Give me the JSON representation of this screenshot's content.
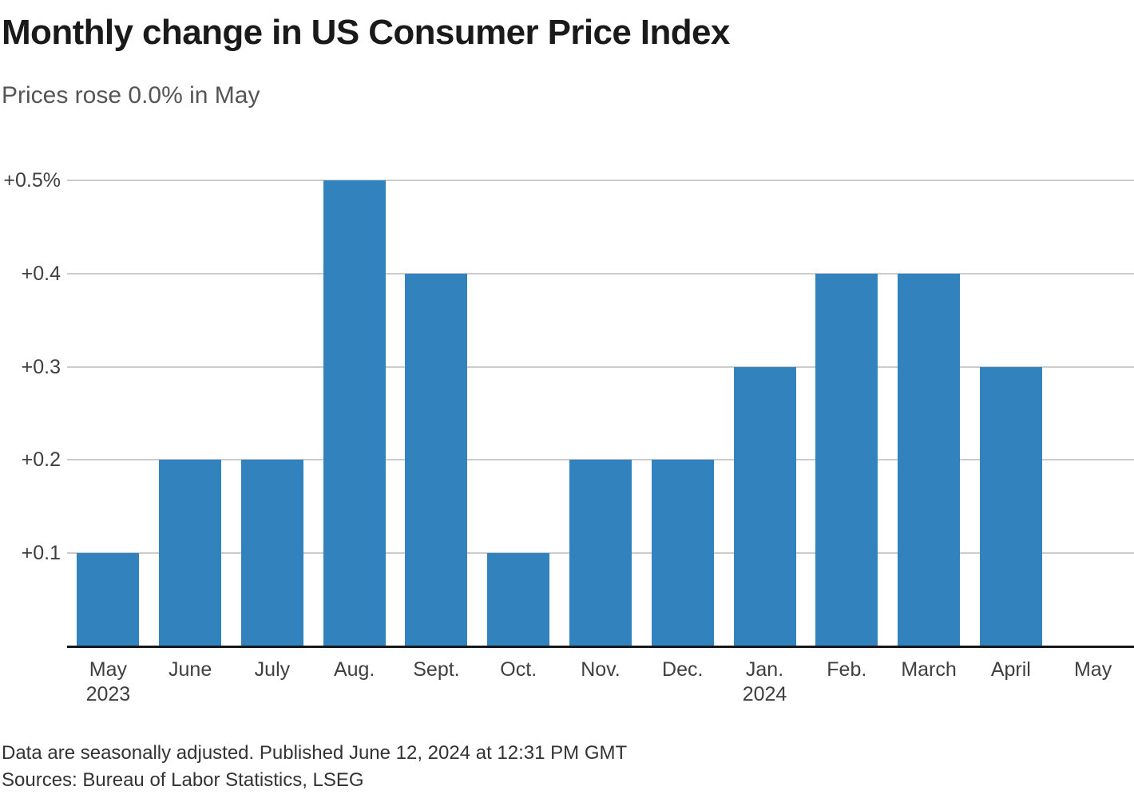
{
  "header": {
    "title": "Monthly change in US Consumer Price Index",
    "subtitle": "Prices rose 0.0% in May"
  },
  "chart_data": {
    "type": "bar",
    "title": "Monthly change in US Consumer Price Index",
    "subtitle": "Prices rose 0.0% in May",
    "categories": [
      "May",
      "June",
      "July",
      "Aug.",
      "Sept.",
      "Oct.",
      "Nov.",
      "Dec.",
      "Jan.",
      "Feb.",
      "March",
      "April",
      "May"
    ],
    "category_sublabels": [
      "2023",
      "",
      "",
      "",
      "",
      "",
      "",
      "",
      "2024",
      "",
      "",
      "",
      ""
    ],
    "values": [
      0.1,
      0.2,
      0.2,
      0.5,
      0.4,
      0.1,
      0.2,
      0.2,
      0.3,
      0.4,
      0.4,
      0.3,
      0.0
    ],
    "unit": "percent month-over-month",
    "xlabel": "",
    "ylabel": "",
    "y_axis": {
      "min": 0,
      "max": 0.5,
      "ticks": [
        0.5,
        0.4,
        0.3,
        0.2,
        0.1
      ],
      "tick_labels": [
        "+0.5%",
        "+0.4",
        "+0.3",
        "+0.2",
        "+0.1"
      ]
    },
    "grid": "horizontal",
    "legend": "none"
  },
  "footer": {
    "note": "Data are seasonally adjusted. Published June 12, 2024 at 12:31 PM GMT",
    "sources": "Sources: Bureau of Labor Statistics, LSEG"
  },
  "colors": {
    "bar": "#3182bd",
    "gridline": "#cccccc",
    "axis_line": "#16181c",
    "title": "#1a1a1a",
    "subtitle": "#555555",
    "tick_label": "#3f3f3f",
    "footer_text": "#333333"
  }
}
